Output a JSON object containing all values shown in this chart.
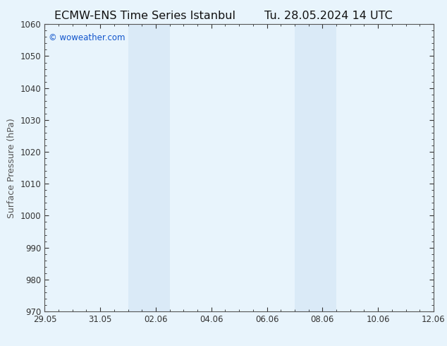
{
  "title_left": "ECMW-ENS Time Series Istanbul",
  "title_right": "Tu. 28.05.2024 14 UTC",
  "ylabel": "Surface Pressure (hPa)",
  "ylim": [
    970,
    1060
  ],
  "yticks": [
    970,
    980,
    990,
    1000,
    1010,
    1020,
    1030,
    1040,
    1050,
    1060
  ],
  "xtick_labels": [
    "29.05",
    "31.05",
    "02.06",
    "04.06",
    "06.06",
    "08.06",
    "10.06",
    "12.06"
  ],
  "xtick_positions": [
    0,
    2,
    4,
    6,
    8,
    10,
    12,
    14
  ],
  "xlim": [
    0,
    14
  ],
  "shade_regions": [
    {
      "x_start": 3.0,
      "x_end": 4.5
    },
    {
      "x_start": 9.0,
      "x_end": 10.5
    }
  ],
  "shade_color": "#daeaf7",
  "background_color": "#e8f4fc",
  "plot_bg_color": "#e8f4fc",
  "watermark": "© woweather.com",
  "watermark_color": "#1155cc",
  "title_color": "#111111",
  "axis_color": "#555555",
  "tick_color": "#333333",
  "title_fontsize": 11.5,
  "ylabel_fontsize": 9,
  "tick_fontsize": 8.5,
  "watermark_fontsize": 8.5
}
